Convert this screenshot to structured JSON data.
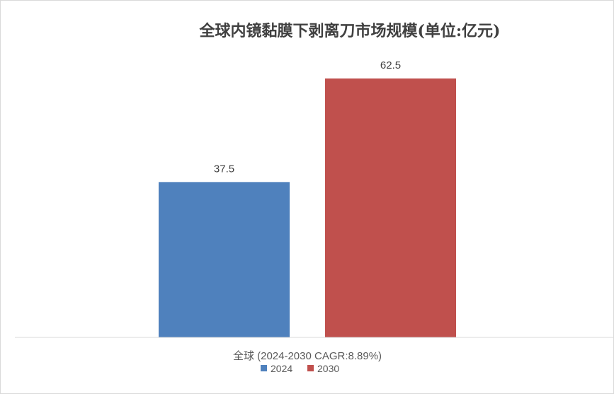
{
  "chart_data": {
    "type": "bar",
    "title": "全球内镜黏膜下剥离刀市场规模(单位:亿元)",
    "categories": [
      "全球 (2024-2030 CAGR:8.89%)"
    ],
    "series": [
      {
        "name": "2024",
        "values": [
          37.5
        ],
        "color": "#4f81bd"
      },
      {
        "name": "2030",
        "values": [
          62.5
        ],
        "color": "#c0504d"
      }
    ],
    "ylim": [
      0,
      70
    ],
    "grid": false,
    "legend_position": "bottom"
  }
}
